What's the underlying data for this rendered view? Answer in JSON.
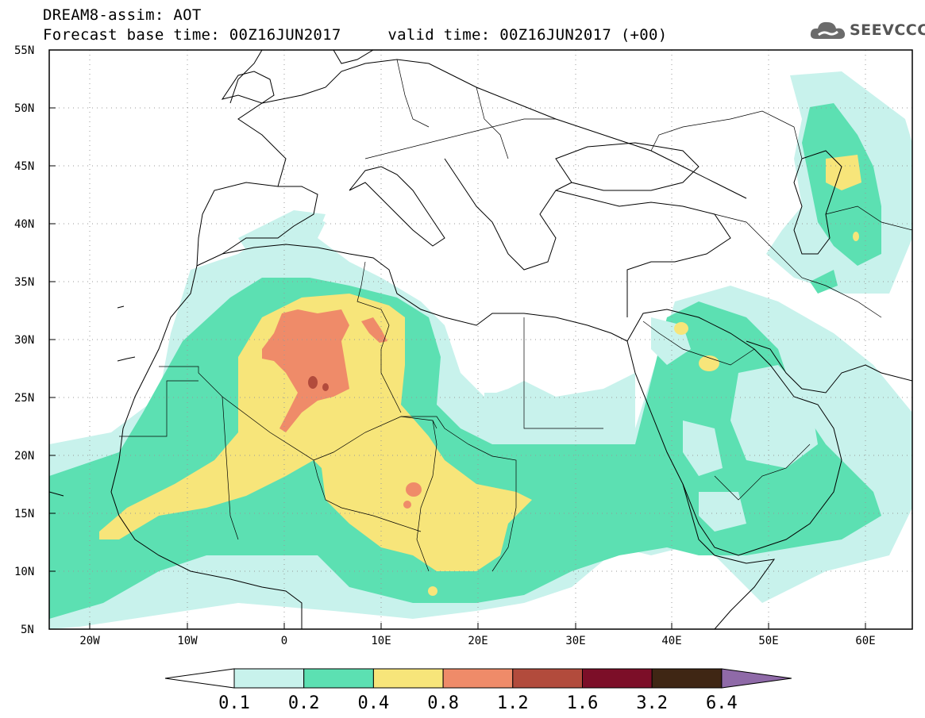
{
  "title": {
    "line1": "DREAM8-assim: AOT",
    "line2": "Forecast base time: 00Z16JUN2017     valid time: 00Z16JUN2017 (+00)"
  },
  "logo": {
    "text": "SEEVCCC",
    "icon": "cloud-icon"
  },
  "map": {
    "lat_labels": [
      "55N",
      "50N",
      "45N",
      "40N",
      "35N",
      "30N",
      "25N",
      "20N",
      "15N",
      "10N",
      "5N"
    ],
    "lon_labels": [
      "20W",
      "10W",
      "0",
      "10E",
      "20E",
      "30E",
      "40E",
      "50E",
      "60E"
    ],
    "extent": {
      "lon_min": -25,
      "lon_max": 65,
      "lat_min": 5,
      "lat_max": 55
    }
  },
  "colorbar": {
    "labels": [
      "0.1",
      "0.2",
      "0.4",
      "0.8",
      "1.2",
      "1.6",
      "3.2",
      "6.4"
    ],
    "colors": [
      "#c8f2ec",
      "#5ce0b2",
      "#f7e57a",
      "#ef8b69",
      "#b24b3c",
      "#7c0e28",
      "#3f2614",
      "#8f6aa8"
    ]
  }
}
